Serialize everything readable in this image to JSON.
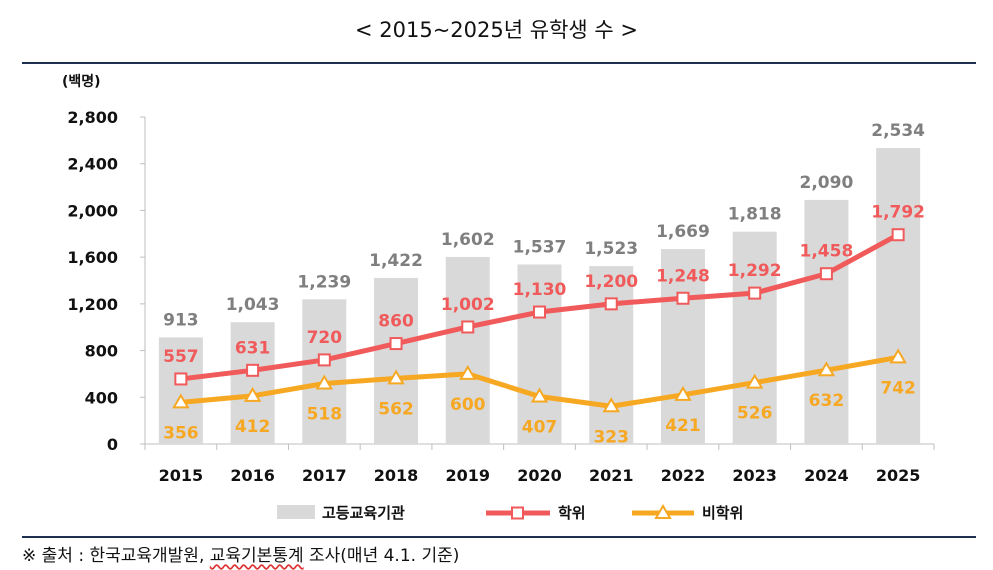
{
  "title": "< 2015~2025년 유학생 수 >",
  "source": {
    "prefix": "※ 출처 : 한국교육개발원, ",
    "underlined": "교육기본통계",
    "suffix": " 조사(매년 4.1. 기준)"
  },
  "chart_data": {
    "type": "bar+line",
    "ylabel": "(백명)",
    "ylim": [
      0,
      2800
    ],
    "yticks": [
      0,
      400,
      800,
      1200,
      1600,
      2000,
      2400,
      2800
    ],
    "ytick_labels": [
      "0",
      "400",
      "800",
      "1,200",
      "1,600",
      "2,000",
      "2,400",
      "2,800"
    ],
    "categories": [
      "2015",
      "2016",
      "2017",
      "2018",
      "2019",
      "2020",
      "2021",
      "2022",
      "2023",
      "2024",
      "2025"
    ],
    "series": [
      {
        "name": "고등교육기관",
        "kind": "bar",
        "color": "#d9d9d9",
        "label_color": "#7f7f7f",
        "values": [
          913,
          1043,
          1239,
          1422,
          1602,
          1537,
          1523,
          1669,
          1818,
          2090,
          2534
        ],
        "labels": [
          "913",
          "1,043",
          "1,239",
          "1,422",
          "1,602",
          "1,537",
          "1,523",
          "1,669",
          "1,818",
          "2,090",
          "2,534"
        ]
      },
      {
        "name": "학위",
        "kind": "line",
        "marker": "square",
        "color": "#f05a5a",
        "label_color": "#f05a5a",
        "values": [
          557,
          631,
          720,
          860,
          1002,
          1130,
          1200,
          1248,
          1292,
          1458,
          1792
        ],
        "labels": [
          "557",
          "631",
          "720",
          "860",
          "1,002",
          "1,130",
          "1,200",
          "1,248",
          "1,292",
          "1,458",
          "1,792"
        ]
      },
      {
        "name": "비학위",
        "kind": "line",
        "marker": "triangle",
        "color": "#f7a823",
        "label_color": "#f7a823",
        "values": [
          356,
          412,
          518,
          562,
          600,
          407,
          323,
          421,
          526,
          632,
          742
        ],
        "labels": [
          "356",
          "412",
          "518",
          "562",
          "600",
          "407",
          "323",
          "421",
          "526",
          "632",
          "742"
        ]
      }
    ],
    "legend": {
      "position": "bottom"
    },
    "grid": false
  }
}
